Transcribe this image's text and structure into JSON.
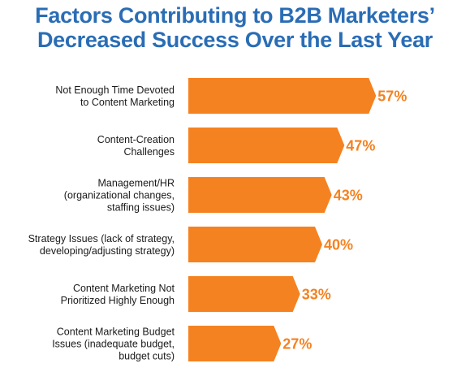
{
  "chart_data": {
    "type": "bar",
    "orientation": "horizontal",
    "title_lines": [
      "Factors Contributing to B2B Marketers’",
      "Decreased Success Over the Last Year"
    ],
    "categories": [
      [
        "Not Enough Time Devoted",
        "to Content Marketing"
      ],
      [
        "Content-Creation",
        "Challenges"
      ],
      [
        "Management/HR",
        "(organizational changes,",
        "staffing issues)"
      ],
      [
        "Strategy Issues (lack of strategy,",
        "developing/adjusting strategy)"
      ],
      [
        "Content Marketing Not",
        "Prioritized Highly Enough"
      ],
      [
        "Content Marketing Budget",
        "Issues (inadequate budget,",
        "budget cuts)"
      ]
    ],
    "values": [
      57,
      47,
      43,
      40,
      33,
      27
    ],
    "value_labels": [
      "57%",
      "47%",
      "43%",
      "40%",
      "33%",
      "27%"
    ],
    "bar_color": "#f58220",
    "label_color": "#f58220",
    "title_color": "#2a6db5",
    "grid": false,
    "legend": "none"
  }
}
